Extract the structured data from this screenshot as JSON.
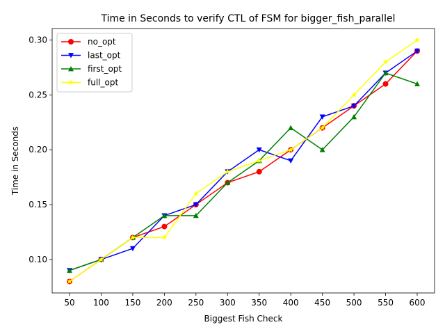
{
  "chart_data": {
    "type": "line",
    "title": "Time in Seconds to verify CTL of FSM for bigger_fish_parallel",
    "xlabel": "Biggest Fish Check",
    "ylabel": "Time in Seconds",
    "x": [
      50,
      100,
      150,
      200,
      250,
      300,
      350,
      400,
      450,
      500,
      550,
      600
    ],
    "xticks": [
      "50",
      "100",
      "150",
      "200",
      "250",
      "300",
      "350",
      "400",
      "450",
      "500",
      "550",
      "600"
    ],
    "yticks": [
      "0.10",
      "0.15",
      "0.20",
      "0.25",
      "0.30"
    ],
    "ylim": [
      0.0695,
      0.3105
    ],
    "grid": false,
    "legend_position": "upper left",
    "series": [
      {
        "name": "no_opt",
        "color": "#ff0000",
        "marker": "circle",
        "values": [
          0.08,
          0.1,
          0.12,
          0.13,
          0.15,
          0.17,
          0.18,
          0.2,
          0.22,
          0.24,
          0.26,
          0.29
        ]
      },
      {
        "name": "last_opt",
        "color": "#0000ff",
        "marker": "triangle-down",
        "values": [
          0.09,
          0.1,
          0.11,
          0.14,
          0.15,
          0.18,
          0.2,
          0.19,
          0.23,
          0.24,
          0.27,
          0.29
        ]
      },
      {
        "name": "first_opt",
        "color": "#008000",
        "marker": "triangle-up",
        "values": [
          0.09,
          0.1,
          0.12,
          0.14,
          0.14,
          0.17,
          0.19,
          0.22,
          0.2,
          0.23,
          0.27,
          0.26
        ]
      },
      {
        "name": "full_opt",
        "color": "#ffff00",
        "marker": "star",
        "values": [
          0.08,
          0.1,
          0.12,
          0.12,
          0.16,
          0.18,
          0.19,
          0.2,
          0.22,
          0.25,
          0.28,
          0.3
        ]
      }
    ]
  }
}
